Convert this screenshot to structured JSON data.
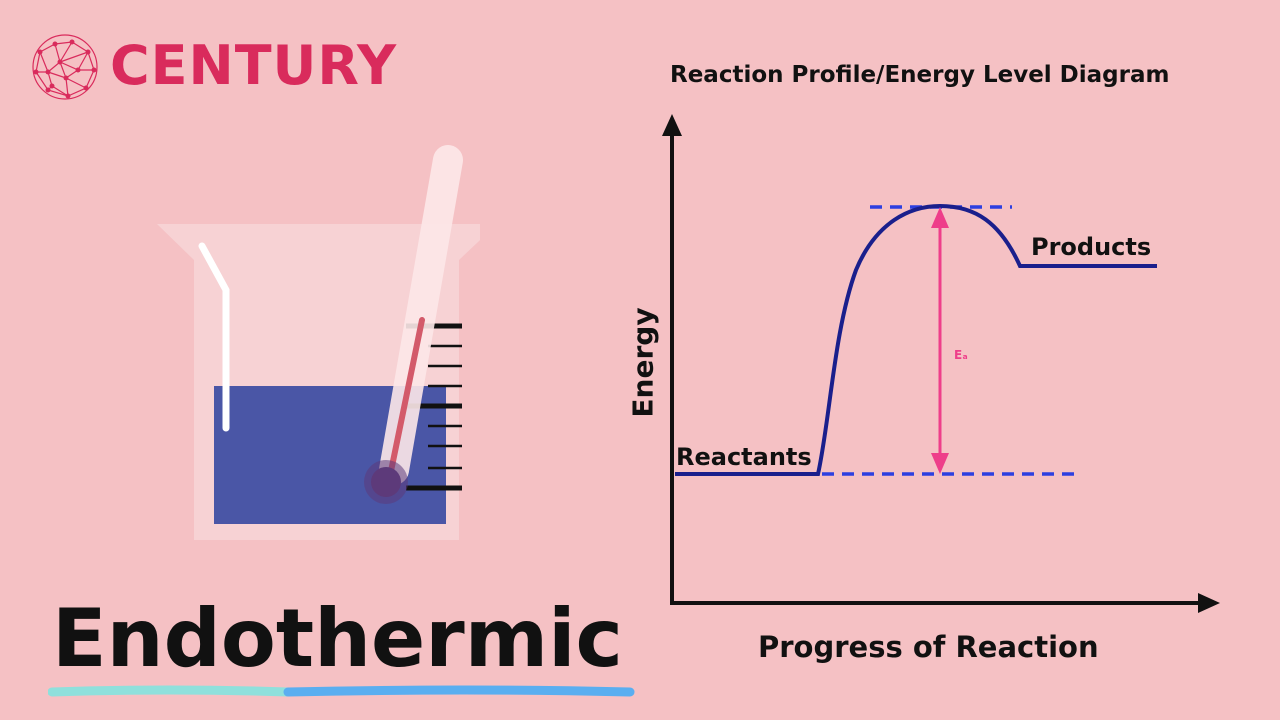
{
  "brand": {
    "name": "CENTURY",
    "color": "#d92b5c",
    "icon": "network-globe-icon"
  },
  "title": "Endothermic",
  "diagram": {
    "title": "Reaction Profile/Energy Level Diagram",
    "y_axis_label": "Energy",
    "x_axis_label": "Progress of Reaction",
    "reactants_label": "Reactants",
    "products_label": "Products",
    "activation_energy_label": "Eₐ",
    "profile": "endothermic",
    "curve_color": "#1a1f8c",
    "dashed_line_color": "#2d3fe0",
    "arrow_color": "#ee3e8a"
  },
  "illustration": {
    "beaker_liquid_color": "#4a56a6",
    "thermometer_bulb_color": "#5d3a7a"
  },
  "colors": {
    "background": "#f5c1c4",
    "underline_left": "#8fe0dc",
    "underline_right": "#5aaef0"
  }
}
